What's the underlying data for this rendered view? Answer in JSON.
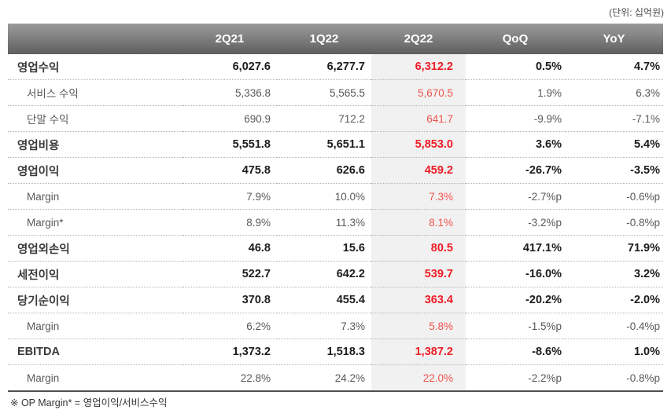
{
  "meta": {
    "unit_note": "(단위: 십억원)",
    "footnote": "※ OP Margin* = 영업이익/서비스수익"
  },
  "colors": {
    "header_grad_top": "#999999",
    "header_grad_bottom": "#5e5e5e",
    "highlight_bg": "#f2f1f1",
    "red_major": "#ed1c24",
    "red_sub": "#f0534d",
    "text_major": "#1c1c1c",
    "text_sub": "#595959"
  },
  "table": {
    "columns": [
      "2Q21",
      "1Q22",
      "2Q22",
      "QoQ",
      "YoY"
    ],
    "highlight_column": "2Q22",
    "highlight_column_index": 2,
    "rows": [
      {
        "label": "영업수익",
        "type": "major",
        "values": [
          "6,027.6",
          "6,277.7",
          "6,312.2",
          "0.5%",
          "4.7%"
        ]
      },
      {
        "label": "서비스 수익",
        "type": "sub",
        "values": [
          "5,336.8",
          "5,565.5",
          "5,670.5",
          "1.9%",
          "6.3%"
        ]
      },
      {
        "label": "단말 수익",
        "type": "sub",
        "values": [
          "690.9",
          "712.2",
          "641.7",
          "-9.9%",
          "-7.1%"
        ]
      },
      {
        "label": "영업비용",
        "type": "major",
        "values": [
          "5,551.8",
          "5,651.1",
          "5,853.0",
          "3.6%",
          "5.4%"
        ]
      },
      {
        "label": "영업이익",
        "type": "major",
        "values": [
          "475.8",
          "626.6",
          "459.2",
          "-26.7%",
          "-3.5%"
        ]
      },
      {
        "label": "Margin",
        "type": "sub",
        "values": [
          "7.9%",
          "10.0%",
          "7.3%",
          "-2.7%p",
          "-0.6%p"
        ]
      },
      {
        "label": "Margin*",
        "type": "sub",
        "values": [
          "8.9%",
          "11.3%",
          "8.1%",
          "-3.2%p",
          "-0.8%p"
        ]
      },
      {
        "label": "영업외손익",
        "type": "major",
        "values": [
          "46.8",
          "15.6",
          "80.5",
          "417.1%",
          "71.9%"
        ]
      },
      {
        "label": "세전이익",
        "type": "major",
        "values": [
          "522.7",
          "642.2",
          "539.7",
          "-16.0%",
          "3.2%"
        ]
      },
      {
        "label": "당기순이익",
        "type": "major",
        "values": [
          "370.8",
          "455.4",
          "363.4",
          "-20.2%",
          "-2.0%"
        ]
      },
      {
        "label": "Margin",
        "type": "sub",
        "values": [
          "6.2%",
          "7.3%",
          "5.8%",
          "-1.5%p",
          "-0.4%p"
        ]
      },
      {
        "label": "EBITDA",
        "type": "major",
        "values": [
          "1,373.2",
          "1,518.3",
          "1,387.2",
          "-8.6%",
          "1.0%"
        ]
      },
      {
        "label": "Margin",
        "type": "sub",
        "values": [
          "22.8%",
          "24.2%",
          "22.0%",
          "-2.2%p",
          "-0.8%p"
        ]
      }
    ]
  }
}
